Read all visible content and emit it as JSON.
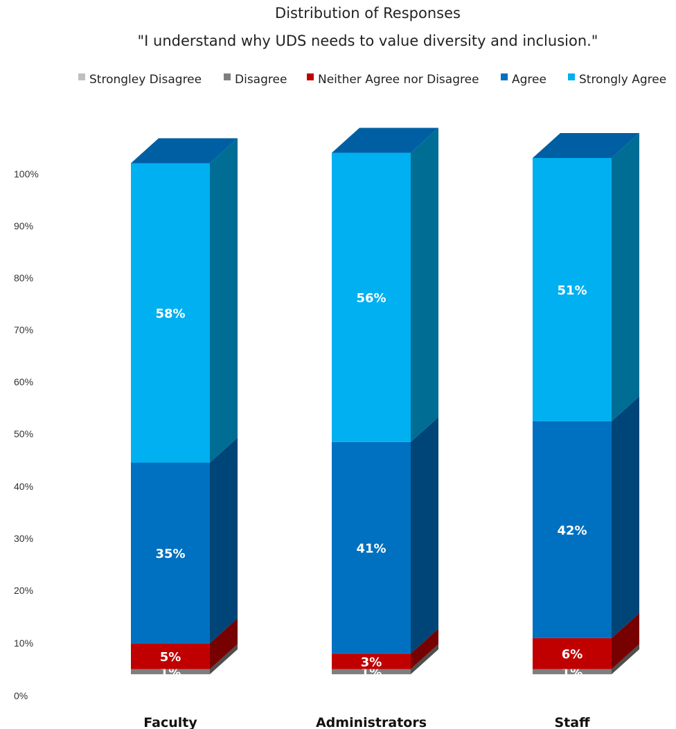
{
  "chart_data": {
    "type": "bar",
    "stacked": true,
    "three_d": true,
    "title": "Distribution of Responses",
    "subtitle": "\"I understand why UDS needs to value diversity and inclusion.\"",
    "categories": [
      "Faculty",
      "Administrators",
      "Staff"
    ],
    "series": [
      {
        "name": "Strongley Disagree",
        "color": "#bfbfbf",
        "values": [
          0,
          0,
          0
        ],
        "labels": [
          "",
          "",
          ""
        ]
      },
      {
        "name": "Disagree",
        "color": "#7f7f7f",
        "values": [
          1,
          1,
          1
        ],
        "labels": [
          "1%",
          "1%",
          "1%"
        ]
      },
      {
        "name": "Neither Agree nor Disagree",
        "color": "#c00000",
        "values": [
          5,
          3,
          6
        ],
        "labels": [
          "5%",
          "3%",
          "6%"
        ]
      },
      {
        "name": "Agree",
        "color": "#0070c0",
        "values": [
          35,
          41,
          42
        ],
        "labels": [
          "35%",
          "41%",
          "42%"
        ]
      },
      {
        "name": "Strongly Agree",
        "color": "#00b0f0",
        "values": [
          58,
          56,
          51
        ],
        "labels": [
          "58%",
          "56%",
          "51%"
        ]
      }
    ],
    "y_ticks": [
      "0%",
      "10%",
      "20%",
      "30%",
      "40%",
      "50%",
      "60%",
      "70%",
      "80%",
      "90%",
      "100%"
    ],
    "ylim": [
      0,
      100
    ],
    "legend_position": "top",
    "grid": false
  }
}
